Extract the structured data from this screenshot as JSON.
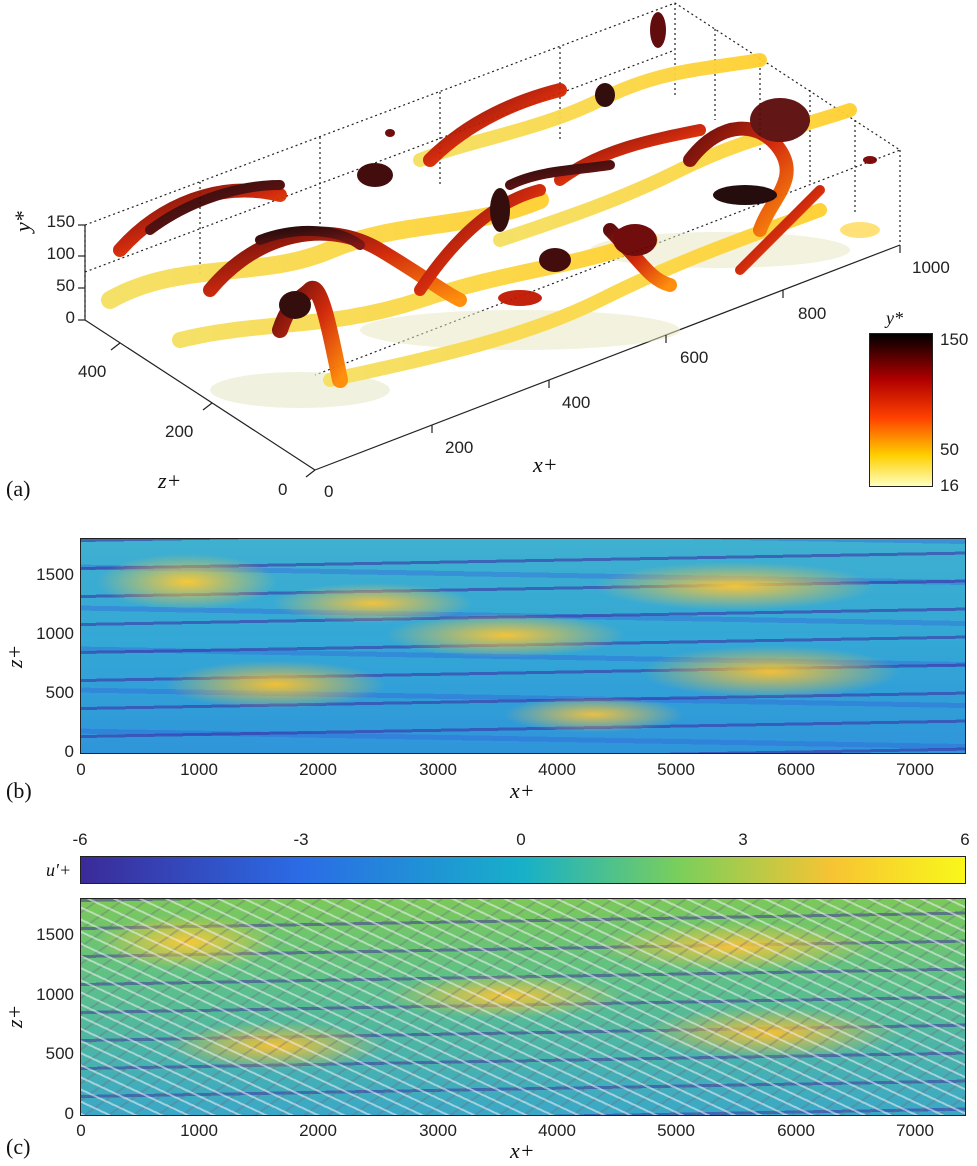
{
  "panel_a": {
    "tag": "(a)",
    "y_axis_label": "y*",
    "y_ticks": [
      "0",
      "50",
      "100",
      "150"
    ],
    "z_axis_label": "z+",
    "z_ticks": [
      "0",
      "200",
      "400"
    ],
    "x_axis_label": "x+",
    "x_ticks": [
      "0",
      "200",
      "400",
      "600",
      "800",
      "1000"
    ],
    "colorbar": {
      "title": "y*",
      "ticks": [
        "150",
        "50",
        "16"
      ],
      "colors": [
        "#000000",
        "#b00000",
        "#ff4000",
        "#ffd000",
        "#ffffc0"
      ]
    }
  },
  "panel_b": {
    "tag": "(b)",
    "x_axis_label": "x+",
    "y_axis_label": "z+",
    "x_ticks": [
      "0",
      "1000",
      "2000",
      "3000",
      "4000",
      "5000",
      "6000",
      "7000"
    ],
    "y_ticks": [
      "0",
      "500",
      "1000",
      "1500"
    ],
    "xlim": [
      0,
      7400
    ],
    "ylim": [
      0,
      1800
    ]
  },
  "panel_c": {
    "tag": "(c)",
    "x_axis_label": "x+",
    "y_axis_label": "z+",
    "x_ticks": [
      "0",
      "1000",
      "2000",
      "3000",
      "4000",
      "5000",
      "6000",
      "7000"
    ],
    "y_ticks": [
      "0",
      "500",
      "1000",
      "1500"
    ],
    "colorbar": {
      "label": "u′+",
      "ticks": [
        "-6",
        "-3",
        "0",
        "3",
        "6"
      ],
      "colors": [
        "#3b2a98",
        "#2b6ce6",
        "#17b0c9",
        "#7ccf5a",
        "#f7c433",
        "#f9f71a"
      ]
    }
  }
}
